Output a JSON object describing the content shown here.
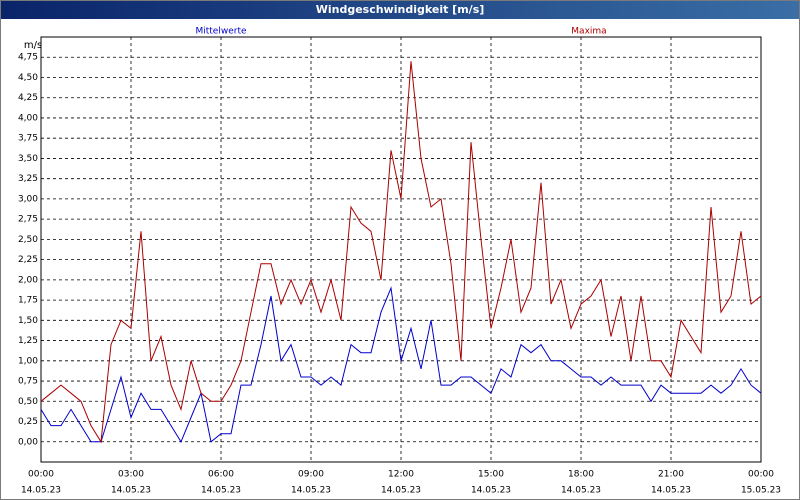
{
  "chart_data": {
    "type": "line",
    "title": "Windgeschwindigkeit [m/s]",
    "y_label": "m/s",
    "x": [
      0,
      20,
      40,
      60,
      80,
      100,
      120,
      140,
      160,
      180,
      200,
      220,
      240,
      260,
      280,
      300,
      320,
      340,
      360,
      380,
      400,
      420,
      440,
      460,
      480,
      500,
      520,
      540,
      560,
      580,
      600,
      620,
      640,
      660,
      680,
      700,
      720,
      740,
      760,
      780,
      800,
      820,
      840,
      860,
      880,
      900,
      920,
      940,
      960,
      980,
      1000,
      1020,
      1040,
      1060,
      1080,
      1100,
      1120,
      1140,
      1160,
      1180,
      1200,
      1220,
      1240,
      1260,
      1280,
      1300,
      1320,
      1340,
      1360,
      1380,
      1400,
      1420,
      1440
    ],
    "series": [
      {
        "name": "Mittelwerte",
        "color": "#0000cc",
        "values": [
          0.4,
          0.2,
          0.2,
          0.4,
          0.2,
          0.0,
          0.0,
          0.4,
          0.8,
          0.3,
          0.6,
          0.4,
          0.4,
          0.2,
          0.0,
          0.3,
          0.6,
          0.0,
          0.1,
          0.1,
          0.7,
          0.7,
          1.2,
          1.8,
          1.0,
          1.2,
          0.8,
          0.8,
          0.7,
          0.8,
          0.7,
          1.2,
          1.1,
          1.1,
          1.6,
          1.9,
          1.0,
          1.4,
          0.9,
          1.5,
          0.7,
          0.7,
          0.8,
          0.8,
          0.7,
          0.6,
          0.9,
          0.8,
          1.2,
          1.1,
          1.2,
          1.0,
          1.0,
          0.9,
          0.8,
          0.8,
          0.7,
          0.8,
          0.7,
          0.7,
          0.7,
          0.5,
          0.7,
          0.6,
          0.6,
          0.6,
          0.6,
          0.7,
          0.6,
          0.7,
          0.9,
          0.7,
          0.6
        ]
      },
      {
        "name": "Maxima",
        "color": "#aa0000",
        "values": [
          0.5,
          0.6,
          0.7,
          0.6,
          0.5,
          0.2,
          0.0,
          1.2,
          1.5,
          1.4,
          2.6,
          1.0,
          1.3,
          0.7,
          0.4,
          1.0,
          0.6,
          0.5,
          0.5,
          0.7,
          1.0,
          1.6,
          2.2,
          2.2,
          1.7,
          2.0,
          1.7,
          2.0,
          1.6,
          2.0,
          1.5,
          2.9,
          2.7,
          2.6,
          2.0,
          3.6,
          3.0,
          4.7,
          3.5,
          2.9,
          3.0,
          2.2,
          1.0,
          3.7,
          2.5,
          1.4,
          1.9,
          2.5,
          1.6,
          1.9,
          3.2,
          1.7,
          2.0,
          1.4,
          1.7,
          1.8,
          2.0,
          1.3,
          1.8,
          1.0,
          1.8,
          1.0,
          1.0,
          0.8,
          1.5,
          1.3,
          1.1,
          2.9,
          1.6,
          1.8,
          2.6,
          1.7,
          1.8
        ]
      }
    ],
    "xlim": [
      0,
      1440
    ],
    "ylim": [
      -0.25,
      5
    ],
    "xticks": [
      {
        "value": 0,
        "label": [
          "00:00",
          "14.05.23"
        ]
      },
      {
        "value": 180,
        "label": [
          "03:00",
          "14.05.23"
        ]
      },
      {
        "value": 360,
        "label": [
          "06:00",
          "14.05.23"
        ]
      },
      {
        "value": 540,
        "label": [
          "09:00",
          "14.05.23"
        ]
      },
      {
        "value": 720,
        "label": [
          "12:00",
          "14.05.23"
        ]
      },
      {
        "value": 900,
        "label": [
          "15:00",
          "14.05.23"
        ]
      },
      {
        "value": 1080,
        "label": [
          "18:00",
          "14.05.23"
        ]
      },
      {
        "value": 1260,
        "label": [
          "21:00",
          "14.05.23"
        ]
      },
      {
        "value": 1440,
        "label": [
          "00:00",
          "15.05.23"
        ]
      }
    ],
    "yticks": [
      {
        "value": 0,
        "label": "0,00"
      },
      {
        "value": 0.25,
        "label": "0,25"
      },
      {
        "value": 0.5,
        "label": "0,50"
      },
      {
        "value": 0.75,
        "label": "0,75"
      },
      {
        "value": 1,
        "label": "1,00"
      },
      {
        "value": 1.25,
        "label": "1,25"
      },
      {
        "value": 1.5,
        "label": "1,50"
      },
      {
        "value": 1.75,
        "label": "1,75"
      },
      {
        "value": 2,
        "label": "2,00"
      },
      {
        "value": 2.25,
        "label": "2,25"
      },
      {
        "value": 2.5,
        "label": "2,50"
      },
      {
        "value": 2.75,
        "label": "2,75"
      },
      {
        "value": 3,
        "label": "3,00"
      },
      {
        "value": 3.25,
        "label": "3,25"
      },
      {
        "value": 3.5,
        "label": "3,50"
      },
      {
        "value": 3.75,
        "label": "3,75"
      },
      {
        "value": 4,
        "label": "4,00"
      },
      {
        "value": 4.25,
        "label": "4,25"
      },
      {
        "value": 4.5,
        "label": "4,50"
      },
      {
        "value": 4.75,
        "label": "4,75"
      }
    ],
    "grid": true
  }
}
